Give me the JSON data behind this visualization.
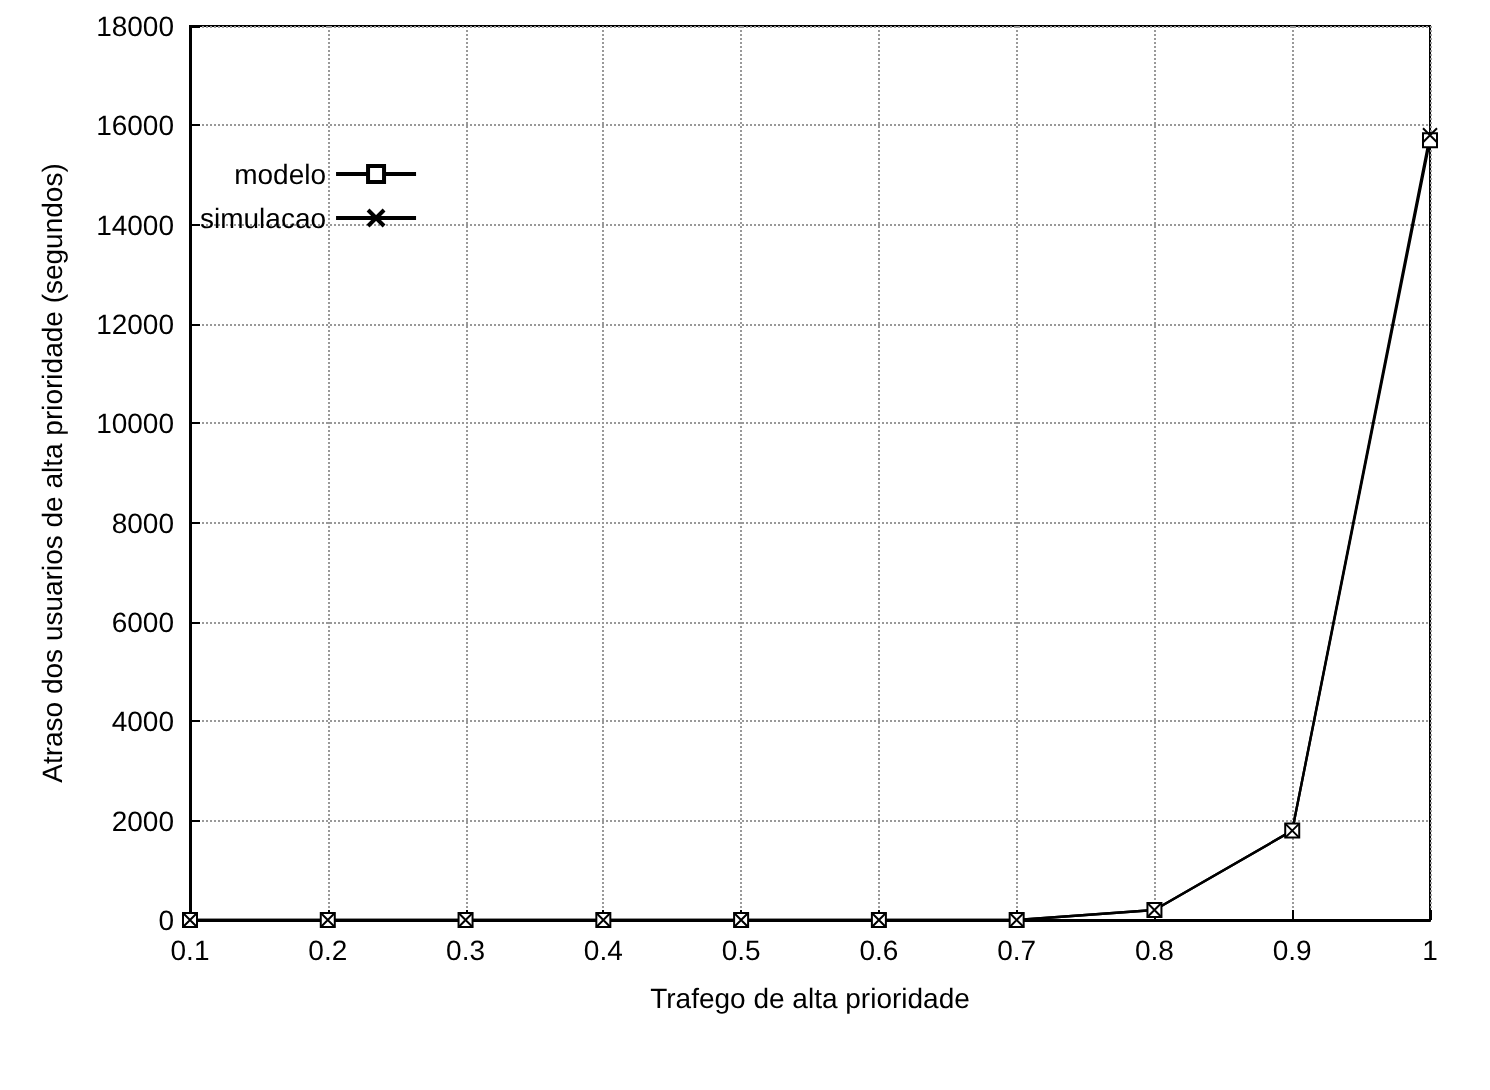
{
  "chart_data": {
    "type": "line",
    "xlabel": "Trafego de alta prioridade",
    "ylabel": "Atraso dos usuarios de alta prioridade (segundos)",
    "x": [
      0.1,
      0.2,
      0.3,
      0.4,
      0.5,
      0.6,
      0.7,
      0.8,
      0.9,
      1.0
    ],
    "series": [
      {
        "name": "modelo",
        "color": "#000000",
        "marker": "square",
        "values": [
          0,
          0,
          0,
          0,
          0,
          0,
          0,
          200,
          1800,
          15700
        ]
      },
      {
        "name": "simulacao",
        "color": "#000000",
        "marker": "cross",
        "values": [
          0,
          0,
          0,
          0,
          0,
          0,
          0,
          200,
          1800,
          15800
        ]
      }
    ],
    "xlim": [
      0.1,
      1.0
    ],
    "xticks": [
      0.1,
      0.2,
      0.3,
      0.4,
      0.5,
      0.6,
      0.7,
      0.8,
      0.9,
      1
    ],
    "ylim": [
      0,
      18000
    ],
    "yticks": [
      0,
      2000,
      4000,
      6000,
      8000,
      10000,
      12000,
      14000,
      16000,
      18000
    ],
    "grid": true,
    "legend": "top left",
    "line_style": "solid"
  }
}
